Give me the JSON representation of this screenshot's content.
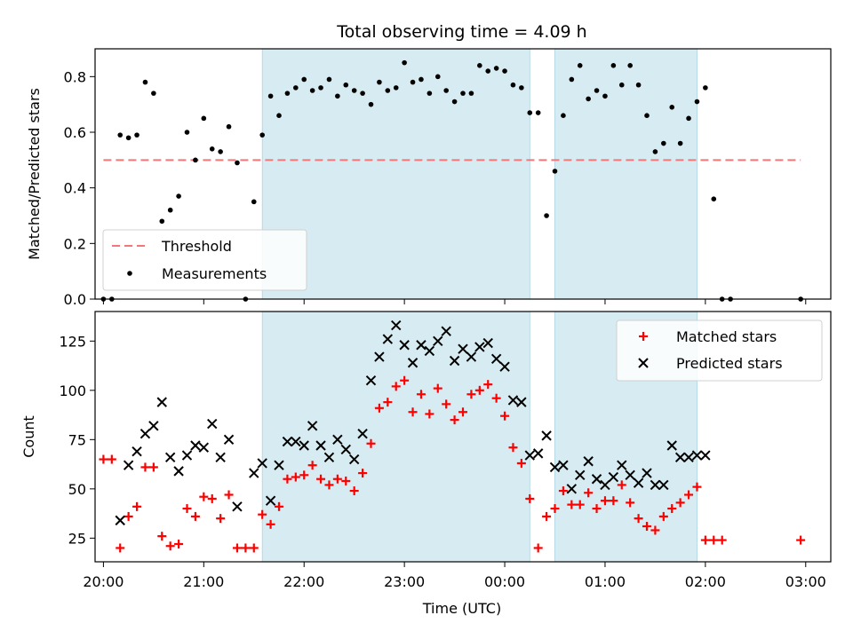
{
  "chart_data": [
    {
      "type": "scatter",
      "title": "Total observing time = 4.09 h",
      "xlabel": "",
      "ylabel": "Matched/Predicted stars",
      "xlim": [
        "19:55",
        "03:15"
      ],
      "ylim": [
        0,
        0.9
      ],
      "yticks": [
        "0.0",
        "0.2",
        "0.4",
        "0.6",
        "0.8"
      ],
      "legend_position": "lower-left",
      "shaded_intervals": [
        [
          "21:35",
          "00:15"
        ],
        [
          "00:30",
          "01:55"
        ]
      ],
      "shade_color": "#d3eaf1",
      "threshold": {
        "name": "Threshold",
        "value": 0.5,
        "x_range": [
          "20:00",
          "02:57"
        ],
        "color": "#f07878"
      },
      "series": [
        {
          "name": "Measurements",
          "color": "#000000",
          "points": [
            [
              "20:00",
              0.0
            ],
            [
              "20:05",
              0.0
            ],
            [
              "20:10",
              0.59
            ],
            [
              "20:15",
              0.58
            ],
            [
              "20:20",
              0.59
            ],
            [
              "20:25",
              0.78
            ],
            [
              "20:30",
              0.74
            ],
            [
              "20:35",
              0.28
            ],
            [
              "20:40",
              0.32
            ],
            [
              "20:45",
              0.37
            ],
            [
              "20:50",
              0.6
            ],
            [
              "20:55",
              0.5
            ],
            [
              "21:00",
              0.65
            ],
            [
              "21:05",
              0.54
            ],
            [
              "21:10",
              0.53
            ],
            [
              "21:15",
              0.62
            ],
            [
              "21:20",
              0.49
            ],
            [
              "21:25",
              0.0
            ],
            [
              "21:30",
              0.35
            ],
            [
              "21:35",
              0.59
            ],
            [
              "21:40",
              0.73
            ],
            [
              "21:45",
              0.66
            ],
            [
              "21:50",
              0.74
            ],
            [
              "21:55",
              0.76
            ],
            [
              "22:00",
              0.79
            ],
            [
              "22:05",
              0.75
            ],
            [
              "22:10",
              0.76
            ],
            [
              "22:15",
              0.79
            ],
            [
              "22:20",
              0.73
            ],
            [
              "22:25",
              0.77
            ],
            [
              "22:30",
              0.75
            ],
            [
              "22:35",
              0.74
            ],
            [
              "22:40",
              0.7
            ],
            [
              "22:45",
              0.78
            ],
            [
              "22:50",
              0.75
            ],
            [
              "22:55",
              0.76
            ],
            [
              "23:00",
              0.85
            ],
            [
              "23:05",
              0.78
            ],
            [
              "23:10",
              0.79
            ],
            [
              "23:15",
              0.74
            ],
            [
              "23:20",
              0.8
            ],
            [
              "23:25",
              0.75
            ],
            [
              "23:30",
              0.71
            ],
            [
              "23:35",
              0.74
            ],
            [
              "23:40",
              0.74
            ],
            [
              "23:45",
              0.84
            ],
            [
              "23:50",
              0.82
            ],
            [
              "23:55",
              0.83
            ],
            [
              "00:00",
              0.82
            ],
            [
              "00:05",
              0.77
            ],
            [
              "00:10",
              0.76
            ],
            [
              "00:15",
              0.67
            ],
            [
              "00:20",
              0.67
            ],
            [
              "00:25",
              0.3
            ],
            [
              "00:30",
              0.46
            ],
            [
              "00:35",
              0.66
            ],
            [
              "00:40",
              0.79
            ],
            [
              "00:45",
              0.84
            ],
            [
              "00:50",
              0.72
            ],
            [
              "00:55",
              0.75
            ],
            [
              "01:00",
              0.73
            ],
            [
              "01:05",
              0.84
            ],
            [
              "01:10",
              0.77
            ],
            [
              "01:15",
              0.84
            ],
            [
              "01:20",
              0.77
            ],
            [
              "01:25",
              0.66
            ],
            [
              "01:30",
              0.53
            ],
            [
              "01:35",
              0.56
            ],
            [
              "01:40",
              0.69
            ],
            [
              "01:45",
              0.56
            ],
            [
              "01:50",
              0.65
            ],
            [
              "01:55",
              0.71
            ],
            [
              "02:00",
              0.76
            ],
            [
              "02:05",
              0.36
            ],
            [
              "02:10",
              0.0
            ],
            [
              "02:15",
              0.0
            ],
            [
              "02:57",
              0.0
            ]
          ]
        }
      ]
    },
    {
      "type": "scatter",
      "title": "",
      "xlabel": "Time (UTC)",
      "ylabel": "Count",
      "xlim": [
        "19:55",
        "03:15"
      ],
      "ylim": [
        13,
        140
      ],
      "xticks": [
        "20:00",
        "21:00",
        "22:00",
        "23:00",
        "00:00",
        "01:00",
        "02:00",
        "03:00"
      ],
      "yticks": [
        "25",
        "50",
        "75",
        "100",
        "125"
      ],
      "legend_position": "upper-right",
      "shaded_intervals": [
        [
          "21:35",
          "00:15"
        ],
        [
          "00:30",
          "01:55"
        ]
      ],
      "shade_color": "#d3eaf1",
      "series": [
        {
          "name": "Matched stars",
          "marker": "+",
          "color": "#ff0000",
          "points": [
            [
              "20:00",
              65
            ],
            [
              "20:05",
              65
            ],
            [
              "20:10",
              20
            ],
            [
              "20:15",
              36
            ],
            [
              "20:20",
              41
            ],
            [
              "20:25",
              61
            ],
            [
              "20:30",
              61
            ],
            [
              "20:35",
              26
            ],
            [
              "20:40",
              21
            ],
            [
              "20:45",
              22
            ],
            [
              "20:50",
              40
            ],
            [
              "20:55",
              36
            ],
            [
              "21:00",
              46
            ],
            [
              "21:05",
              45
            ],
            [
              "21:10",
              35
            ],
            [
              "21:15",
              47
            ],
            [
              "21:20",
              20
            ],
            [
              "21:25",
              20
            ],
            [
              "21:30",
              20
            ],
            [
              "21:35",
              37
            ],
            [
              "21:40",
              32
            ],
            [
              "21:45",
              41
            ],
            [
              "21:50",
              55
            ],
            [
              "21:55",
              56
            ],
            [
              "22:00",
              57
            ],
            [
              "22:05",
              62
            ],
            [
              "22:10",
              55
            ],
            [
              "22:15",
              52
            ],
            [
              "22:20",
              55
            ],
            [
              "22:25",
              54
            ],
            [
              "22:30",
              49
            ],
            [
              "22:35",
              58
            ],
            [
              "22:40",
              73
            ],
            [
              "22:45",
              91
            ],
            [
              "22:50",
              94
            ],
            [
              "22:55",
              102
            ],
            [
              "23:00",
              105
            ],
            [
              "23:05",
              89
            ],
            [
              "23:10",
              98
            ],
            [
              "23:15",
              88
            ],
            [
              "23:20",
              101
            ],
            [
              "23:25",
              93
            ],
            [
              "23:30",
              85
            ],
            [
              "23:35",
              89
            ],
            [
              "23:40",
              98
            ],
            [
              "23:45",
              100
            ],
            [
              "23:50",
              103
            ],
            [
              "23:55",
              96
            ],
            [
              "00:00",
              87
            ],
            [
              "00:05",
              71
            ],
            [
              "00:10",
              63
            ],
            [
              "00:15",
              45
            ],
            [
              "00:20",
              20
            ],
            [
              "00:25",
              36
            ],
            [
              "00:30",
              40
            ],
            [
              "00:35",
              49
            ],
            [
              "00:40",
              42
            ],
            [
              "00:45",
              42
            ],
            [
              "00:50",
              48
            ],
            [
              "00:55",
              40
            ],
            [
              "01:00",
              44
            ],
            [
              "01:05",
              44
            ],
            [
              "01:10",
              52
            ],
            [
              "01:15",
              43
            ],
            [
              "01:20",
              35
            ],
            [
              "01:25",
              31
            ],
            [
              "01:30",
              29
            ],
            [
              "01:35",
              36
            ],
            [
              "01:40",
              40
            ],
            [
              "01:45",
              43
            ],
            [
              "01:50",
              47
            ],
            [
              "01:55",
              51
            ],
            [
              "02:00",
              24
            ],
            [
              "02:05",
              24
            ],
            [
              "02:10",
              24
            ],
            [
              "02:57",
              24
            ]
          ]
        },
        {
          "name": "Predicted stars",
          "marker": "x",
          "color": "#000000",
          "points": [
            [
              "20:10",
              34
            ],
            [
              "20:15",
              62
            ],
            [
              "20:20",
              69
            ],
            [
              "20:25",
              78
            ],
            [
              "20:30",
              82
            ],
            [
              "20:35",
              94
            ],
            [
              "20:40",
              66
            ],
            [
              "20:45",
              59
            ],
            [
              "20:50",
              67
            ],
            [
              "20:55",
              72
            ],
            [
              "21:00",
              71
            ],
            [
              "21:05",
              83
            ],
            [
              "21:10",
              66
            ],
            [
              "21:15",
              75
            ],
            [
              "21:20",
              41
            ],
            [
              "21:30",
              58
            ],
            [
              "21:35",
              63
            ],
            [
              "21:40",
              44
            ],
            [
              "21:45",
              62
            ],
            [
              "21:50",
              74
            ],
            [
              "21:55",
              74
            ],
            [
              "22:00",
              72
            ],
            [
              "22:05",
              82
            ],
            [
              "22:10",
              72
            ],
            [
              "22:15",
              66
            ],
            [
              "22:20",
              75
            ],
            [
              "22:25",
              70
            ],
            [
              "22:30",
              65
            ],
            [
              "22:35",
              78
            ],
            [
              "22:40",
              105
            ],
            [
              "22:45",
              117
            ],
            [
              "22:50",
              126
            ],
            [
              "22:55",
              133
            ],
            [
              "23:00",
              123
            ],
            [
              "23:05",
              114
            ],
            [
              "23:10",
              123
            ],
            [
              "23:15",
              120
            ],
            [
              "23:20",
              125
            ],
            [
              "23:25",
              130
            ],
            [
              "23:30",
              115
            ],
            [
              "23:35",
              121
            ],
            [
              "23:40",
              117
            ],
            [
              "23:45",
              122
            ],
            [
              "23:50",
              124
            ],
            [
              "23:55",
              116
            ],
            [
              "00:00",
              112
            ],
            [
              "00:05",
              95
            ],
            [
              "00:10",
              94
            ],
            [
              "00:15",
              67
            ],
            [
              "00:20",
              68
            ],
            [
              "00:25",
              77
            ],
            [
              "00:30",
              61
            ],
            [
              "00:35",
              62
            ],
            [
              "00:40",
              50
            ],
            [
              "00:45",
              57
            ],
            [
              "00:50",
              64
            ],
            [
              "00:55",
              55
            ],
            [
              "01:00",
              52
            ],
            [
              "01:05",
              56
            ],
            [
              "01:10",
              62
            ],
            [
              "01:15",
              57
            ],
            [
              "01:20",
              53
            ],
            [
              "01:25",
              58
            ],
            [
              "01:30",
              52
            ],
            [
              "01:35",
              52
            ],
            [
              "01:40",
              72
            ],
            [
              "01:45",
              66
            ],
            [
              "01:50",
              66
            ],
            [
              "01:55",
              67
            ],
            [
              "02:00",
              67
            ]
          ]
        }
      ]
    }
  ]
}
